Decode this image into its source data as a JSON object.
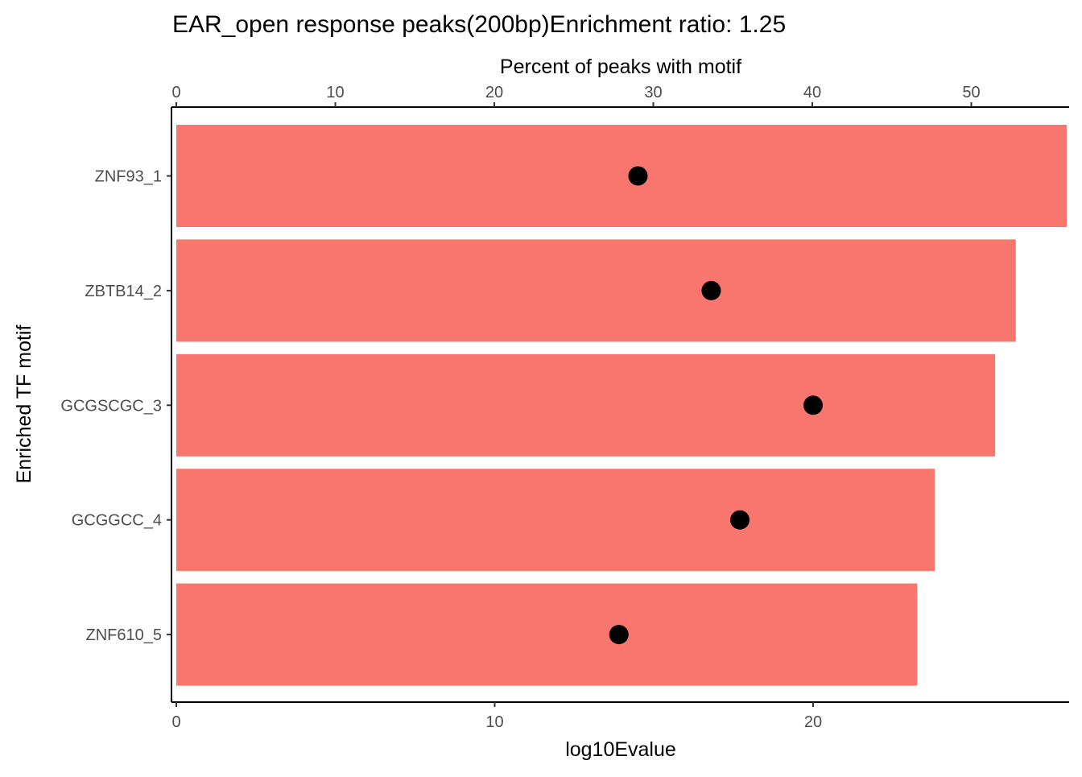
{
  "chart_data": {
    "type": "bar",
    "title": "EAR_open response peaks(200bp)Enrichment ratio: 1.25",
    "ylabel": "Enriched TF motif",
    "categories": [
      "ZNF93_1",
      "ZBTB14_2",
      "GCGSCGC_3",
      "GCGGCC_4",
      "ZNF610_5"
    ],
    "bar_axis": {
      "label": "Percent of peaks with motif",
      "position": "top",
      "range": [
        0,
        56
      ],
      "ticks": [
        0,
        10,
        20,
        30,
        40,
        50
      ]
    },
    "point_axis": {
      "label": "log10Evalue",
      "position": "bottom",
      "range": [
        0,
        28
      ],
      "ticks": [
        0,
        10,
        20
      ]
    },
    "series": [
      {
        "kind": "bar",
        "axis": "top",
        "color": "#F8766D",
        "values": [
          56.0,
          52.8,
          51.5,
          47.7,
          46.6
        ]
      },
      {
        "kind": "point",
        "axis": "bottom",
        "color": "#000000",
        "values": [
          14.5,
          16.8,
          20.0,
          17.7,
          13.9
        ]
      }
    ],
    "grid": false,
    "legend": "none"
  }
}
